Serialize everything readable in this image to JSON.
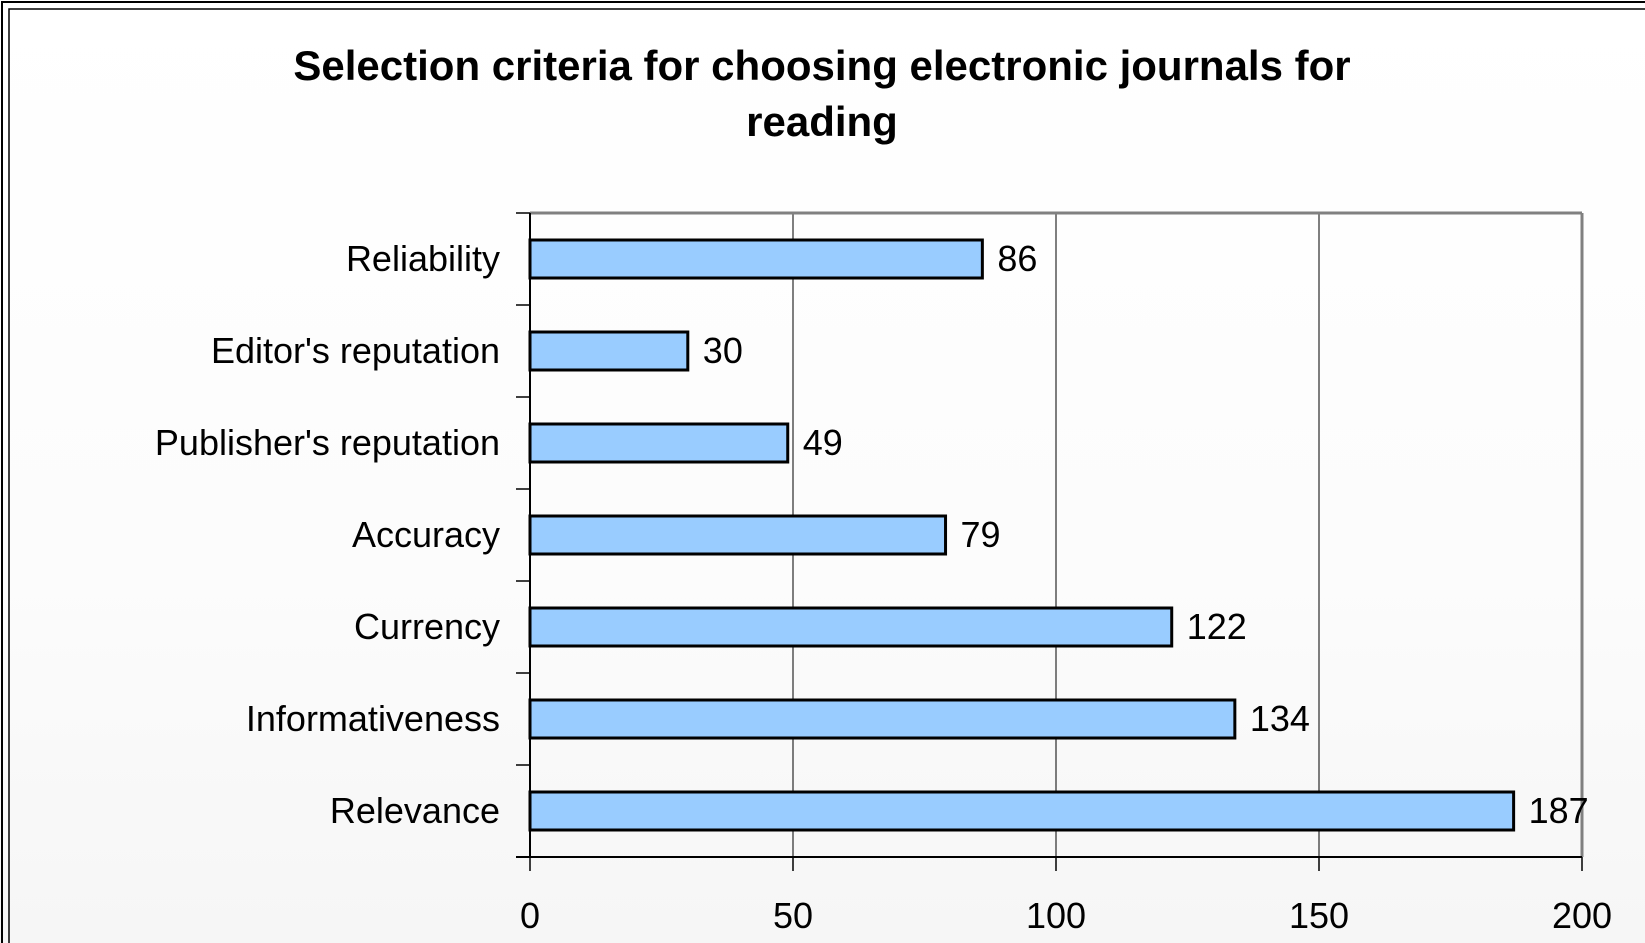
{
  "colors": {
    "bar_fill": "#99ccff",
    "bar_stroke": "#000000",
    "grid": "#000000",
    "plot_border": "#808080",
    "text": "#000000"
  },
  "chart_data": {
    "type": "bar",
    "orientation": "horizontal",
    "title_lines": [
      "Selection criteria for choosing electronic journals for",
      "reading"
    ],
    "categories": [
      "Reliability",
      "Editor's reputation",
      "Publisher's reputation",
      "Accuracy",
      "Currency",
      "Informativeness",
      "Relevance"
    ],
    "values": [
      86,
      30,
      49,
      79,
      122,
      134,
      187
    ],
    "value_labels": [
      "86",
      "30",
      "49",
      "79",
      "122",
      "134",
      "187"
    ],
    "xlim": [
      0,
      200
    ],
    "xticks": [
      0,
      50,
      100,
      150,
      200
    ],
    "xtick_labels": [
      "0",
      "50",
      "100",
      "150",
      "200"
    ],
    "grid": "vertical",
    "legend": "none"
  }
}
